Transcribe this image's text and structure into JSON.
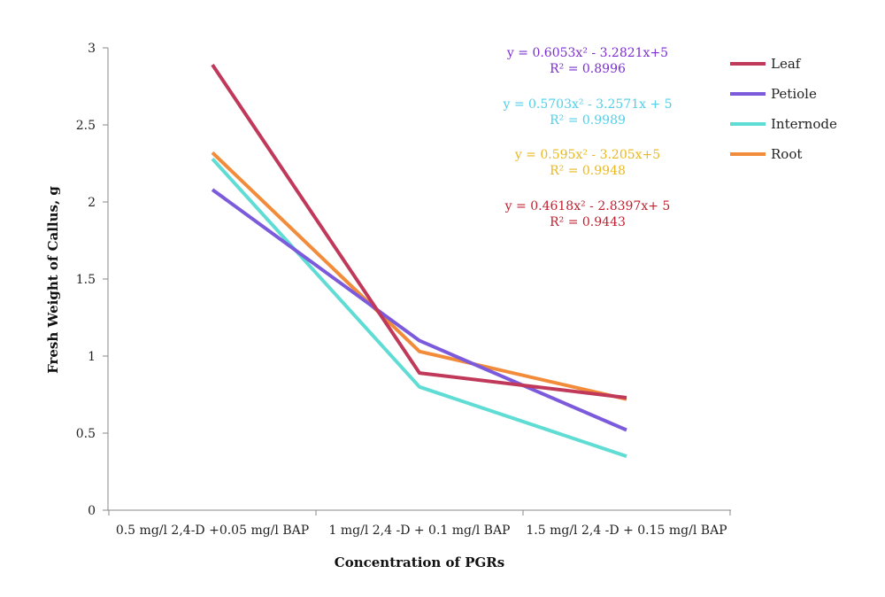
{
  "chart_data": {
    "type": "line",
    "title": "",
    "xlabel": "Concentration of PGRs",
    "ylabel": "Fresh Weight of Callus, g",
    "ylim": [
      0,
      3
    ],
    "yticks": [
      "0",
      "0.5",
      "1",
      "1.5",
      "2",
      "2.5",
      "3"
    ],
    "grid": false,
    "legend_position": "right",
    "categories": [
      "0.5 mg/l 2,4-D +0.05 mg/l BAP",
      "1 mg/l 2,4 -D + 0.1 mg/l BAP",
      "1.5 mg/l 2,4 -D + 0.15 mg/l BAP"
    ],
    "series": [
      {
        "name": "Leaf",
        "color": "#c0395a",
        "values": [
          2.89,
          0.89,
          0.73
        ]
      },
      {
        "name": "Petiole",
        "color": "#7b5bdc",
        "values": [
          2.08,
          1.1,
          0.52
        ]
      },
      {
        "name": "Internode",
        "color": "#5fdcd4",
        "values": [
          2.28,
          0.8,
          0.35
        ]
      },
      {
        "name": "Root",
        "color": "#f28c3a",
        "values": [
          2.32,
          1.03,
          0.72
        ]
      }
    ],
    "annotations": [
      {
        "equation": "y = 0.6053x² - 3.2821x+5",
        "r2": "R² = 0.8996",
        "color": "#7b2fd0"
      },
      {
        "equation": "y = 0.5703x² - 3.2571x + 5",
        "r2": "R² = 0.9989",
        "color": "#4fd0e8"
      },
      {
        "equation": "y = 0.595x² - 3.205x+5",
        "r2": "R² = 0.9948",
        "color": "#e8b820"
      },
      {
        "equation": "y = 0.4618x² - 2.8397x+ 5",
        "r2": "R² = 0.9443",
        "color": "#c02030"
      }
    ]
  }
}
